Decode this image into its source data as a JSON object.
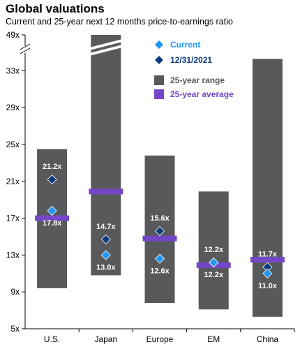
{
  "title": "Global valuations",
  "subtitle": "Current and 25-year next 12 months price-to-earnings ratio",
  "colors": {
    "current": "#2196F3",
    "dec2021": "#0D3C7A",
    "range": "#58595B",
    "average": "#7446C8",
    "axis": "#000000"
  },
  "legend": {
    "current": "Current",
    "dec2021": "12/31/2021",
    "range": "25-year range",
    "average": "25-year average"
  },
  "chart_data": {
    "type": "bar",
    "title": "Global valuations",
    "subtitle": "Current and 25-year next 12 months price-to-earnings ratio",
    "categories": [
      "U.S.",
      "Japan",
      "Europe",
      "EM",
      "China"
    ],
    "y_ticks": [
      "5x",
      "9x",
      "13x",
      "17x",
      "21x",
      "25x",
      "29x",
      "33x",
      "49x"
    ],
    "ylim": [
      5,
      49
    ],
    "axis_break": [
      34,
      49
    ],
    "grid": false,
    "legend_position": "top-right",
    "range_low": [
      9.4,
      10.8,
      7.8,
      7.1,
      6.3
    ],
    "range_high": [
      24.5,
      49,
      23.8,
      19.9,
      35.5
    ],
    "range_truncated": [
      false,
      true,
      false,
      false,
      false
    ],
    "average": [
      17,
      19.9,
      14.8,
      11.9,
      12.5
    ],
    "dec2021": [
      21.2,
      14.7,
      15.6,
      12.2,
      11.7
    ],
    "current": [
      17.8,
      13.0,
      12.6,
      12.2,
      11.0
    ],
    "labels_2021": [
      "21.2x",
      "14.7x",
      "15.6x",
      "12.2x",
      "11.7x"
    ],
    "labels_current": [
      "17.8x",
      "13.0x",
      "12.6x",
      "12.2x",
      "11.0x"
    ]
  }
}
